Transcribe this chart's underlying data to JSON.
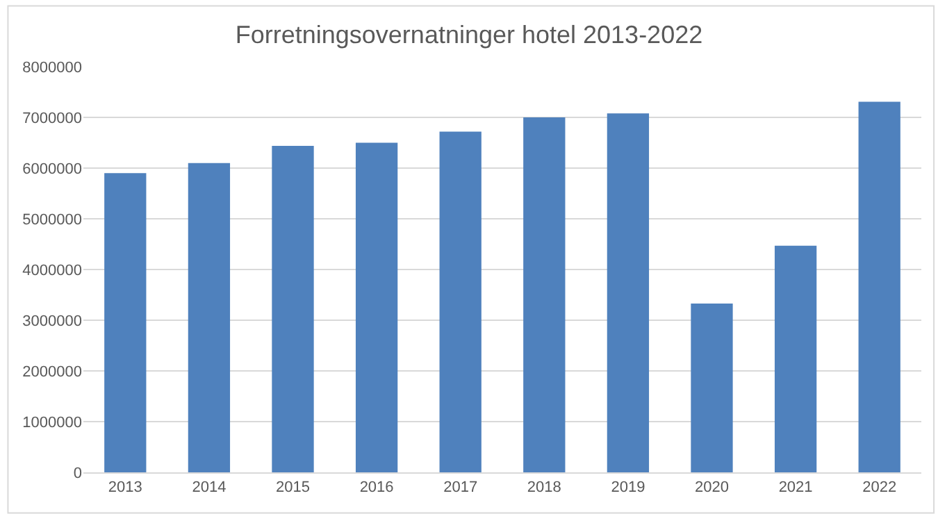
{
  "chart_data": {
    "type": "bar",
    "title": "Forretningsovernatninger hotel 2013-2022",
    "categories": [
      "2013",
      "2014",
      "2015",
      "2016",
      "2017",
      "2018",
      "2019",
      "2020",
      "2021",
      "2022"
    ],
    "values": [
      5900000,
      6100000,
      6440000,
      6500000,
      6720000,
      7000000,
      7080000,
      3330000,
      4470000,
      7310000
    ],
    "color": "#4f81bd",
    "ylim": [
      0,
      8000000
    ],
    "yticks": [
      0,
      1000000,
      2000000,
      3000000,
      4000000,
      5000000,
      6000000,
      7000000,
      8000000
    ],
    "grid": "y",
    "legend": false
  }
}
